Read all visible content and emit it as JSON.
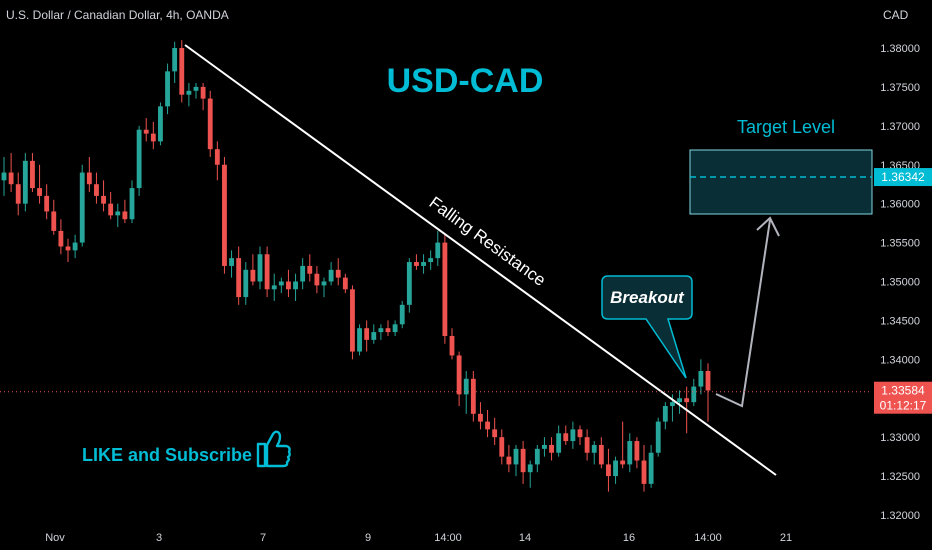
{
  "header": {
    "title": "U.S. Dollar / Canadian Dollar, 4h, OANDA",
    "currency": "CAD"
  },
  "chart_data": {
    "type": "candlestick",
    "ylim": [
      1.32,
      1.381
    ],
    "y_ticks": [
      "1.38000",
      "1.37500",
      "1.37000",
      "1.36500",
      "1.36000",
      "1.35500",
      "1.35000",
      "1.34500",
      "1.34000",
      "1.33500",
      "1.33000",
      "1.32500",
      "1.32000"
    ],
    "x_ticks": [
      "Nov",
      "3",
      "7",
      "9",
      "14:00",
      "14",
      "16",
      "14:00",
      "21"
    ],
    "grid": false,
    "colors": {
      "up": "#26a69a",
      "down": "#ef5350",
      "background": "#000000",
      "axis_text": "#d1d4dc"
    },
    "candles": [
      [
        1.363,
        1.366,
        1.361,
        1.364
      ],
      [
        1.364,
        1.3665,
        1.3615,
        1.3625
      ],
      [
        1.3625,
        1.364,
        1.3585,
        1.36
      ],
      [
        1.36,
        1.3665,
        1.359,
        1.3655
      ],
      [
        1.3655,
        1.3665,
        1.3615,
        1.362
      ],
      [
        1.362,
        1.365,
        1.36,
        1.361
      ],
      [
        1.361,
        1.3625,
        1.358,
        1.359
      ],
      [
        1.359,
        1.3605,
        1.356,
        1.3565
      ],
      [
        1.3565,
        1.358,
        1.3535,
        1.3545
      ],
      [
        1.3545,
        1.3555,
        1.3525,
        1.354
      ],
      [
        1.354,
        1.356,
        1.353,
        1.355
      ],
      [
        1.355,
        1.365,
        1.3545,
        1.364
      ],
      [
        1.364,
        1.366,
        1.3615,
        1.3625
      ],
      [
        1.3625,
        1.364,
        1.36,
        1.361
      ],
      [
        1.361,
        1.363,
        1.359,
        1.36
      ],
      [
        1.36,
        1.3615,
        1.358,
        1.3585
      ],
      [
        1.3585,
        1.36,
        1.357,
        1.359
      ],
      [
        1.359,
        1.3605,
        1.3575,
        1.358
      ],
      [
        1.358,
        1.363,
        1.3575,
        1.362
      ],
      [
        1.362,
        1.37,
        1.361,
        1.3695
      ],
      [
        1.3695,
        1.371,
        1.368,
        1.369
      ],
      [
        1.369,
        1.3705,
        1.367,
        1.368
      ],
      [
        1.368,
        1.373,
        1.3675,
        1.3725
      ],
      [
        1.3725,
        1.378,
        1.3715,
        1.377
      ],
      [
        1.377,
        1.3808,
        1.3755,
        1.38
      ],
      [
        1.38,
        1.381,
        1.373,
        1.374
      ],
      [
        1.374,
        1.3755,
        1.3725,
        1.3745
      ],
      [
        1.3745,
        1.3755,
        1.3735,
        1.375
      ],
      [
        1.375,
        1.3755,
        1.372,
        1.3735
      ],
      [
        1.3735,
        1.3745,
        1.366,
        1.367
      ],
      [
        1.367,
        1.368,
        1.363,
        1.365
      ],
      [
        1.365,
        1.366,
        1.351,
        1.352
      ],
      [
        1.352,
        1.354,
        1.3505,
        1.353
      ],
      [
        1.353,
        1.3545,
        1.347,
        1.348
      ],
      [
        1.348,
        1.3525,
        1.347,
        1.3515
      ],
      [
        1.3515,
        1.3535,
        1.3495,
        1.35
      ],
      [
        1.35,
        1.3545,
        1.349,
        1.3535
      ],
      [
        1.3535,
        1.3545,
        1.348,
        1.349
      ],
      [
        1.349,
        1.351,
        1.3475,
        1.3495
      ],
      [
        1.3495,
        1.3505,
        1.3485,
        1.35
      ],
      [
        1.35,
        1.3515,
        1.348,
        1.349
      ],
      [
        1.349,
        1.351,
        1.3475,
        1.35
      ],
      [
        1.35,
        1.353,
        1.349,
        1.352
      ],
      [
        1.352,
        1.3535,
        1.35,
        1.351
      ],
      [
        1.351,
        1.352,
        1.3485,
        1.3495
      ],
      [
        1.3495,
        1.3505,
        1.348,
        1.35
      ],
      [
        1.35,
        1.3525,
        1.3495,
        1.3515
      ],
      [
        1.3515,
        1.353,
        1.3495,
        1.3505
      ],
      [
        1.3505,
        1.351,
        1.3485,
        1.349
      ],
      [
        1.349,
        1.3495,
        1.34,
        1.341
      ],
      [
        1.341,
        1.3445,
        1.3405,
        1.344
      ],
      [
        1.344,
        1.345,
        1.341,
        1.3425
      ],
      [
        1.3425,
        1.3445,
        1.342,
        1.3435
      ],
      [
        1.3435,
        1.3445,
        1.3425,
        1.344
      ],
      [
        1.344,
        1.345,
        1.343,
        1.3435
      ],
      [
        1.3435,
        1.345,
        1.343,
        1.3445
      ],
      [
        1.3445,
        1.3475,
        1.344,
        1.347
      ],
      [
        1.347,
        1.353,
        1.346,
        1.3525
      ],
      [
        1.3525,
        1.3535,
        1.3515,
        1.352
      ],
      [
        1.352,
        1.3535,
        1.351,
        1.3525
      ],
      [
        1.3525,
        1.354,
        1.3515,
        1.353
      ],
      [
        1.353,
        1.3565,
        1.352,
        1.355
      ],
      [
        1.355,
        1.356,
        1.342,
        1.343
      ],
      [
        1.343,
        1.344,
        1.34,
        1.3405
      ],
      [
        1.3405,
        1.341,
        1.334,
        1.3355
      ],
      [
        1.3355,
        1.3385,
        1.333,
        1.3375
      ],
      [
        1.3375,
        1.3385,
        1.332,
        1.333
      ],
      [
        1.333,
        1.3345,
        1.331,
        1.332
      ],
      [
        1.332,
        1.3335,
        1.33,
        1.331
      ],
      [
        1.331,
        1.3325,
        1.329,
        1.33
      ],
      [
        1.33,
        1.331,
        1.3265,
        1.3275
      ],
      [
        1.3275,
        1.329,
        1.3255,
        1.3265
      ],
      [
        1.3265,
        1.329,
        1.325,
        1.3285
      ],
      [
        1.3285,
        1.3295,
        1.324,
        1.3255
      ],
      [
        1.3255,
        1.327,
        1.3235,
        1.3265
      ],
      [
        1.3265,
        1.329,
        1.3255,
        1.3285
      ],
      [
        1.3285,
        1.33,
        1.3275,
        1.329
      ],
      [
        1.329,
        1.33,
        1.327,
        1.328
      ],
      [
        1.328,
        1.3315,
        1.3275,
        1.3305
      ],
      [
        1.3305,
        1.3315,
        1.329,
        1.3295
      ],
      [
        1.3295,
        1.332,
        1.3285,
        1.331
      ],
      [
        1.331,
        1.3315,
        1.329,
        1.33
      ],
      [
        1.33,
        1.331,
        1.327,
        1.328
      ],
      [
        1.328,
        1.3295,
        1.3265,
        1.329
      ],
      [
        1.329,
        1.33,
        1.326,
        1.3265
      ],
      [
        1.3265,
        1.3285,
        1.323,
        1.325
      ],
      [
        1.325,
        1.3275,
        1.324,
        1.327
      ],
      [
        1.327,
        1.332,
        1.326,
        1.3265
      ],
      [
        1.3265,
        1.3305,
        1.3255,
        1.3295
      ],
      [
        1.3295,
        1.33,
        1.326,
        1.327
      ],
      [
        1.327,
        1.329,
        1.323,
        1.324
      ],
      [
        1.324,
        1.329,
        1.3235,
        1.328
      ],
      [
        1.328,
        1.3325,
        1.3275,
        1.332
      ],
      [
        1.332,
        1.3345,
        1.331,
        1.334
      ],
      [
        1.334,
        1.3355,
        1.332,
        1.3345
      ],
      [
        1.3345,
        1.336,
        1.333,
        1.335
      ],
      [
        1.335,
        1.3365,
        1.3305,
        1.3345
      ],
      [
        1.3345,
        1.3375,
        1.334,
        1.3365
      ],
      [
        1.3365,
        1.34,
        1.3355,
        1.3385
      ],
      [
        1.3385,
        1.3395,
        1.332,
        1.336
      ]
    ],
    "current_price": 1.33584,
    "countdown": "01:12:17",
    "target_level": 1.36342
  },
  "annotations": {
    "pair_label": "USD-CAD",
    "trendline_label": "Falling Resistance",
    "breakout_label": "Breakout",
    "target_label": "Target Level",
    "like_label": "LIKE and Subscribe",
    "thumbs_up_icon": "thumbs-up-icon"
  }
}
